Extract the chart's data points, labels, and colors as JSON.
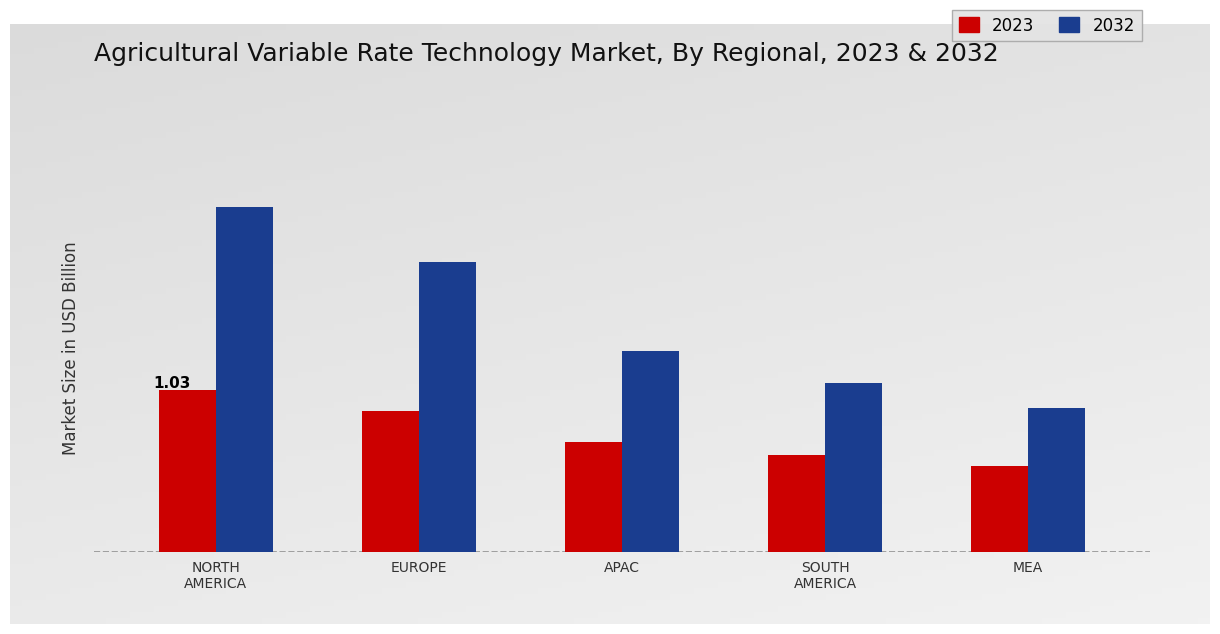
{
  "title": "Agricultural Variable Rate Technology Market, By Regional, 2023 & 2032",
  "ylabel": "Market Size in USD Billion",
  "categories": [
    "NORTH\nAMERICA",
    "EUROPE",
    "APAC",
    "SOUTH\nAMERICA",
    "MEA"
  ],
  "values_2023": [
    1.03,
    0.9,
    0.7,
    0.62,
    0.55
  ],
  "values_2032": [
    2.2,
    1.85,
    1.28,
    1.08,
    0.92
  ],
  "color_2023": "#cc0000",
  "color_2032": "#1a3d8f",
  "annotation_label": "1.03",
  "annotation_index": 0,
  "legend_labels": [
    "2023",
    "2032"
  ],
  "title_fontsize": 18,
  "ylabel_fontsize": 12,
  "tick_fontsize": 10,
  "legend_fontsize": 12,
  "bar_width": 0.28,
  "ylim": [
    0,
    2.6
  ],
  "bg_color_top": "#f0f0f0",
  "bg_color_bottom": "#c8c8c8"
}
